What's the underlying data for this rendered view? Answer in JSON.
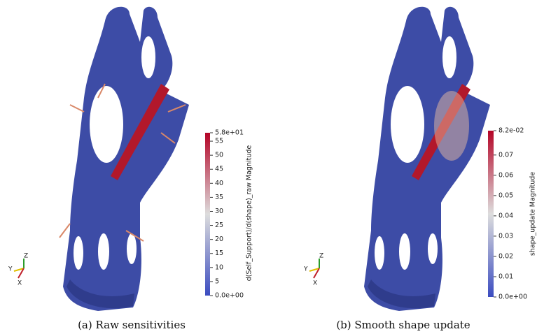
{
  "panels": [
    {
      "colorbar": {
        "title": "d(Self_Support)/d(shape)_raw Magnitude",
        "range": [
          0,
          58
        ],
        "ticks": [
          {
            "value": 58,
            "label": "5.8e+01"
          },
          55,
          50,
          45,
          40,
          35,
          30,
          25,
          20,
          15,
          10,
          5,
          {
            "value": 0,
            "label": "0.0e+00"
          }
        ]
      },
      "axes": [
        "Z",
        "Y",
        "X"
      ],
      "caption": "(a) Raw sensitivities"
    },
    {
      "colorbar": {
        "title": "shape_update Magnitude",
        "range": [
          0,
          0.082
        ],
        "ticks": [
          {
            "value": 0.082,
            "label": "8.2e-02"
          },
          0.07,
          0.06,
          0.05,
          0.04,
          0.03,
          0.02,
          0.01,
          {
            "value": 0,
            "label": "0.0e+00"
          }
        ]
      },
      "axes": [
        "Z",
        "Y",
        "X"
      ],
      "caption": "(b) Smooth shape update"
    }
  ]
}
